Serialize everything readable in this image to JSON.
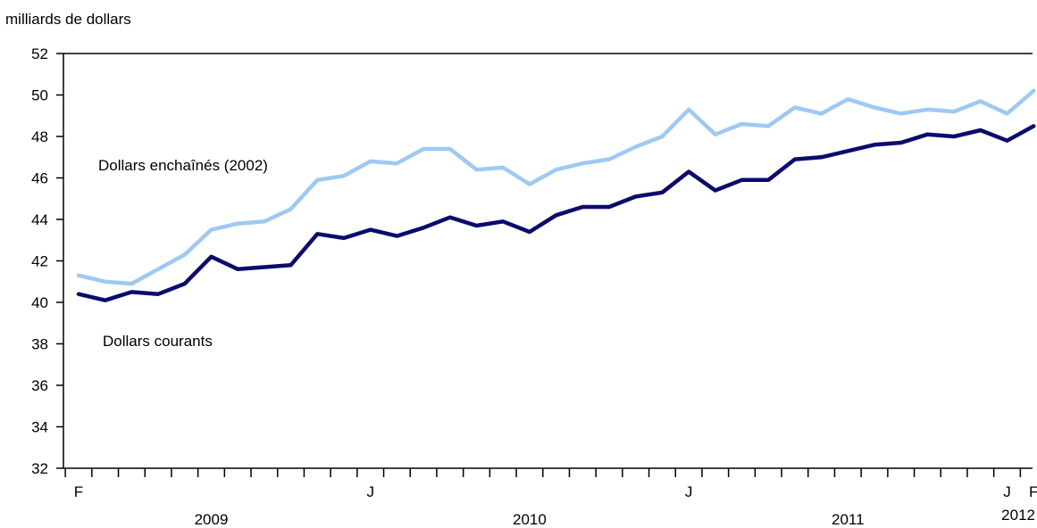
{
  "chart_data": {
    "type": "line",
    "ylabel": "milliards de dollars",
    "ylim": [
      32,
      52
    ],
    "y_ticks": [
      "32",
      "34",
      "36",
      "38",
      "40",
      "42",
      "44",
      "46",
      "48",
      "50",
      "52"
    ],
    "grid": false,
    "x": [
      "2009-02",
      "2009-03",
      "2009-04",
      "2009-05",
      "2009-06",
      "2009-07",
      "2009-08",
      "2009-09",
      "2009-10",
      "2009-11",
      "2009-12",
      "2010-01",
      "2010-02",
      "2010-03",
      "2010-04",
      "2010-05",
      "2010-06",
      "2010-07",
      "2010-08",
      "2010-09",
      "2010-10",
      "2010-11",
      "2010-12",
      "2011-01",
      "2011-02",
      "2011-03",
      "2011-04",
      "2011-05",
      "2011-06",
      "2011-07",
      "2011-08",
      "2011-09",
      "2011-10",
      "2011-11",
      "2011-12",
      "2012-01",
      "2012-02"
    ],
    "x_tick_labels": [
      {
        "x": "2009-02",
        "label": "F"
      },
      {
        "x": "2010-01",
        "label": "J"
      },
      {
        "x": "2011-01",
        "label": "J"
      },
      {
        "x": "2012-01",
        "label": "J"
      },
      {
        "x": "2012-02",
        "label": "F"
      }
    ],
    "year_labels": [
      {
        "x": "2009-07",
        "label": "2009"
      },
      {
        "x": "2010-07",
        "label": "2010"
      },
      {
        "x": "2011-07",
        "label": "2011"
      },
      {
        "x": "2012-02",
        "label": "2012"
      }
    ],
    "series": [
      {
        "name": "Dollars enchaînés (2002)",
        "color": "#9ec9f2",
        "values": [
          41.3,
          41.0,
          40.9,
          41.6,
          42.3,
          43.5,
          43.8,
          43.9,
          44.5,
          45.9,
          46.1,
          46.8,
          46.7,
          47.4,
          47.4,
          46.4,
          46.5,
          45.7,
          46.4,
          46.7,
          46.9,
          47.5,
          48.0,
          49.3,
          48.1,
          48.6,
          48.5,
          49.4,
          49.1,
          49.8,
          49.4,
          49.1,
          49.3,
          49.2,
          49.7,
          49.1,
          50.2
        ]
      },
      {
        "name": "Dollars courants",
        "color": "#0b0b6e",
        "values": [
          40.4,
          40.1,
          40.5,
          40.4,
          40.9,
          42.2,
          41.6,
          41.7,
          41.8,
          43.3,
          43.1,
          43.5,
          43.2,
          43.6,
          44.1,
          43.7,
          43.9,
          43.4,
          44.2,
          44.6,
          44.6,
          45.1,
          45.3,
          46.3,
          45.4,
          45.9,
          45.9,
          46.9,
          47.0,
          47.3,
          47.6,
          47.7,
          48.1,
          48.0,
          48.3,
          47.8,
          48.5
        ]
      }
    ]
  }
}
